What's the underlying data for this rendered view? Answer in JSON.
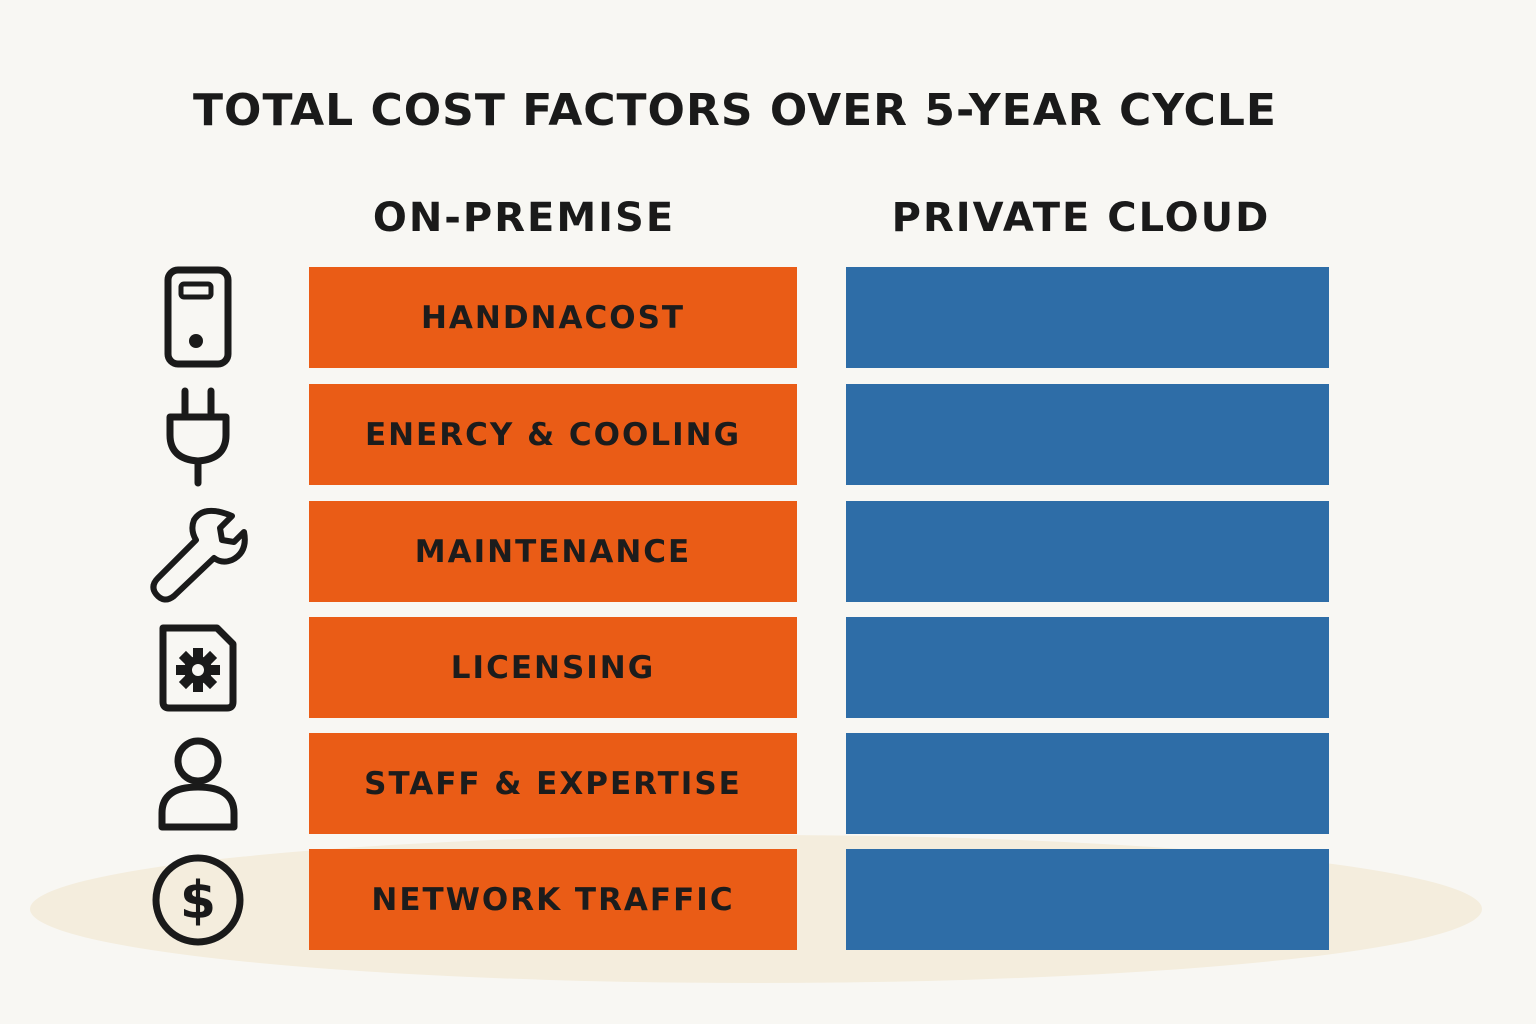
{
  "title": "TOTAL COST FACTORS OVER 5-YEAR CYCLE",
  "columns": {
    "left": "ON-PREMISE",
    "right": "PRIVATE CLOUD"
  },
  "colors": {
    "on_premise": "#ea5c16",
    "private_cloud": "#2e6da7",
    "background": "#f8f7f3"
  },
  "rows": [
    {
      "label": "HANDNACOST",
      "icon": "server-icon"
    },
    {
      "label": "ENERCY & COOLING",
      "icon": "power-plug-icon"
    },
    {
      "label": "MAINTENANCE",
      "icon": "wrench-icon"
    },
    {
      "label": "LICENSING",
      "icon": "license-gear-icon"
    },
    {
      "label": "STAFF & EXPERTISE",
      "icon": "person-icon"
    },
    {
      "label": "NETWORK TRAFFIC",
      "icon": "dollar-coin-icon"
    }
  ]
}
